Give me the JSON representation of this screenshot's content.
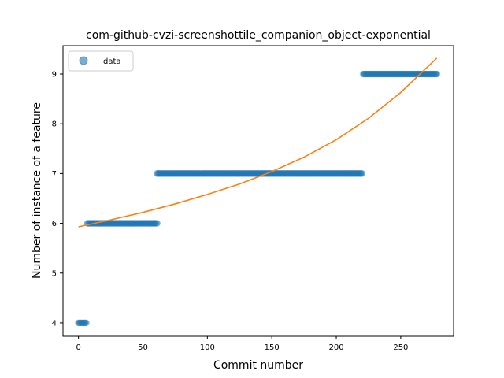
{
  "chart_data": {
    "type": "scatter",
    "title": "com-github-cvzi-screenshottile_companion_object-exponential",
    "xlabel": "Commit number",
    "ylabel": "Number of instance of a feature",
    "xlim": [
      -12,
      291
    ],
    "ylim": [
      3.73,
      9.57
    ],
    "xticks": [
      0,
      50,
      100,
      150,
      200,
      250
    ],
    "yticks": [
      4,
      5,
      6,
      7,
      8,
      9
    ],
    "grid": false,
    "legend_position": "top-left",
    "series": [
      {
        "name": "data",
        "kind": "scatter",
        "color": "#1f77b4",
        "segments": [
          {
            "x_start": 0,
            "x_end": 6,
            "y": 4
          },
          {
            "x_start": 7,
            "x_end": 61,
            "y": 6
          },
          {
            "x_start": 61,
            "x_end": 220,
            "y": 7
          },
          {
            "x_start": 221,
            "x_end": 278,
            "y": 9
          }
        ]
      },
      {
        "kind": "line",
        "color": "#ff7f0e",
        "fit": "exponential",
        "x": [
          0,
          25,
          50,
          75,
          100,
          125,
          150,
          175,
          200,
          225,
          250,
          278
        ],
        "y": [
          5.93,
          6.07,
          6.22,
          6.39,
          6.58,
          6.79,
          7.04,
          7.33,
          7.68,
          8.11,
          8.63,
          9.32
        ]
      }
    ],
    "legend": [
      {
        "label": "data",
        "marker": "circle",
        "color": "#1f77b4"
      }
    ]
  }
}
